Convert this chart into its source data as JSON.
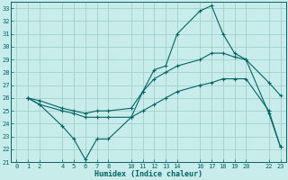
{
  "title": "",
  "xlabel": "Humidex (Indice chaleur)",
  "background_color": "#c8ecea",
  "grid_color": "#a0d0cc",
  "line_color": "#006666",
  "xlim": [
    -0.5,
    23.5
  ],
  "ylim": [
    21,
    33.5
  ],
  "xticks": [
    0,
    1,
    2,
    4,
    5,
    6,
    7,
    8,
    10,
    11,
    12,
    13,
    14,
    16,
    17,
    18,
    19,
    20,
    22,
    23
  ],
  "yticks": [
    21,
    22,
    23,
    24,
    25,
    26,
    27,
    28,
    29,
    30,
    31,
    32,
    33
  ],
  "series": [
    {
      "x": [
        1,
        2,
        4,
        5,
        6,
        7,
        8,
        10,
        11,
        12,
        13,
        14,
        16,
        17,
        18,
        19,
        20,
        22,
        23
      ],
      "y": [
        26.0,
        25.5,
        23.8,
        22.8,
        21.2,
        22.8,
        22.8,
        24.5,
        26.5,
        28.2,
        28.5,
        31.0,
        32.8,
        33.2,
        31.0,
        29.5,
        29.0,
        24.8,
        22.2
      ]
    },
    {
      "x": [
        1,
        2,
        4,
        5,
        6,
        7,
        8,
        10,
        11,
        12,
        13,
        14,
        16,
        17,
        18,
        19,
        20,
        22,
        23
      ],
      "y": [
        26.0,
        25.8,
        25.2,
        25.0,
        24.8,
        25.0,
        25.0,
        25.2,
        26.5,
        27.5,
        28.0,
        28.5,
        29.0,
        29.5,
        29.5,
        29.2,
        29.0,
        27.2,
        26.2
      ]
    },
    {
      "x": [
        1,
        2,
        4,
        5,
        6,
        7,
        8,
        10,
        11,
        12,
        13,
        14,
        16,
        17,
        18,
        19,
        20,
        22,
        23
      ],
      "y": [
        26.0,
        25.5,
        25.0,
        24.8,
        24.5,
        24.5,
        24.5,
        24.5,
        25.0,
        25.5,
        26.0,
        26.5,
        27.0,
        27.2,
        27.5,
        27.5,
        27.5,
        25.0,
        22.2
      ]
    }
  ]
}
